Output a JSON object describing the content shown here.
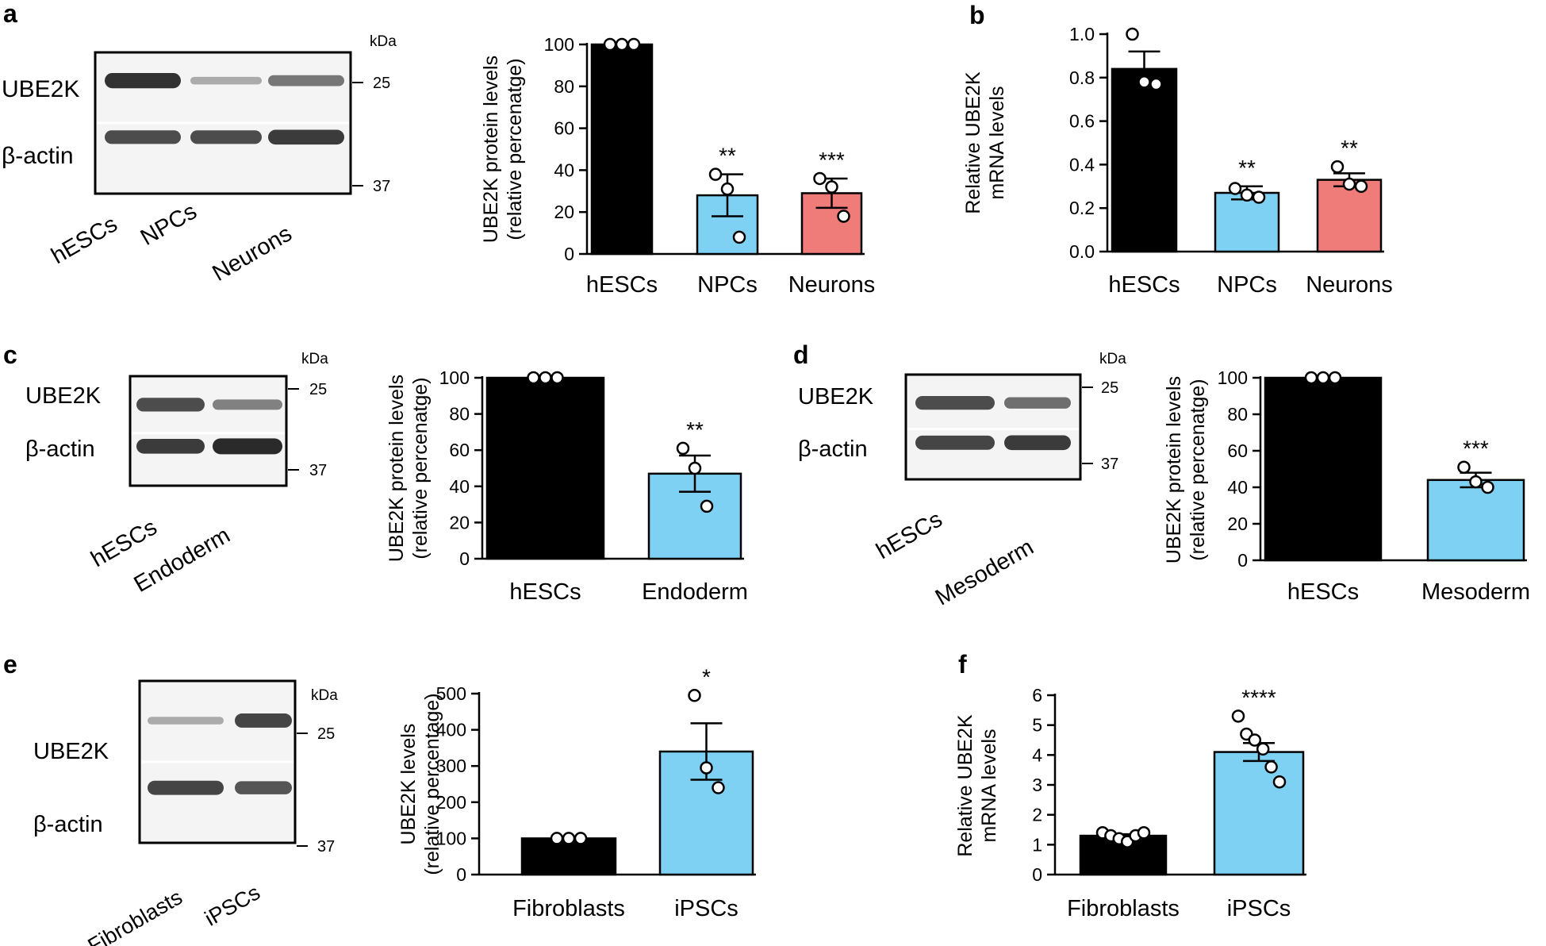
{
  "colors": {
    "black": "#000000",
    "blue": "#7fd1f4",
    "red": "#f07c79",
    "white": "#ffffff",
    "band": "#2a2a2a"
  },
  "panels": {
    "a": {
      "letter": "a",
      "blot": {
        "kda": "kDa",
        "markers": [
          "25",
          "37"
        ],
        "rows": [
          "UBE2K",
          "β-actin"
        ],
        "lanes": [
          "hESCs",
          "NPCs",
          "Neurons"
        ],
        "band_intensity": [
          [
            0.95,
            0.25,
            0.55
          ],
          [
            0.8,
            0.8,
            0.9
          ]
        ]
      }
    },
    "b": {
      "letter": "b"
    },
    "c": {
      "letter": "c",
      "blot": {
        "kda": "kDa",
        "markers": [
          "25",
          "37"
        ],
        "rows": [
          "UBE2K",
          "β-actin"
        ],
        "lanes": [
          "hESCs",
          "Endoderm"
        ],
        "band_intensity": [
          [
            0.8,
            0.5
          ],
          [
            0.9,
            1.0
          ]
        ]
      }
    },
    "d": {
      "letter": "d",
      "blot": {
        "kda": "kDa",
        "markers": [
          "25",
          "37"
        ],
        "rows": [
          "UBE2K",
          "β-actin"
        ],
        "lanes": [
          "hESCs",
          "Mesoderm"
        ],
        "band_intensity": [
          [
            0.8,
            0.6
          ],
          [
            0.85,
            0.9
          ]
        ]
      }
    },
    "e": {
      "letter": "e",
      "blot": {
        "kda": "kDa",
        "markers": [
          "25",
          "37"
        ],
        "rows": [
          "UBE2K",
          "β-actin"
        ],
        "lanes": [
          "Fibroblasts",
          "iPSCs"
        ],
        "band_intensity": [
          [
            0.25,
            0.85
          ],
          [
            0.85,
            0.75
          ]
        ]
      }
    },
    "f": {
      "letter": "f"
    }
  },
  "chart_data": [
    {
      "id": "a",
      "type": "bar",
      "ylabel": [
        "UBE2K protein levels",
        "(relative percenatge)"
      ],
      "ylim": [
        0,
        100
      ],
      "yticks": [
        0,
        20,
        40,
        60,
        80,
        100
      ],
      "categories": [
        "hESCs",
        "NPCs",
        "Neurons"
      ],
      "values": [
        100,
        28,
        29
      ],
      "sem": [
        0,
        10,
        7
      ],
      "points": [
        [
          100,
          100,
          100
        ],
        [
          38,
          31,
          8
        ],
        [
          36,
          32,
          18
        ]
      ],
      "colors": [
        "black",
        "blue",
        "red"
      ],
      "significance": [
        "",
        "**",
        "***"
      ]
    },
    {
      "id": "b",
      "type": "bar",
      "ylabel": [
        "Relative UBE2K",
        "mRNA levels"
      ],
      "ylim": [
        0,
        1.0
      ],
      "yticks": [
        "0.0",
        "0.2",
        "0.4",
        "0.6",
        "0.8",
        "1.0"
      ],
      "categories": [
        "hESCs",
        "NPCs",
        "Neurons"
      ],
      "values": [
        0.84,
        0.27,
        0.33
      ],
      "sem": [
        0.08,
        0.03,
        0.03
      ],
      "points": [
        [
          1.0,
          0.78,
          0.77
        ],
        [
          0.29,
          0.26,
          0.25
        ],
        [
          0.39,
          0.31,
          0.3
        ]
      ],
      "colors": [
        "black",
        "blue",
        "red"
      ],
      "significance": [
        "",
        "**",
        "**"
      ]
    },
    {
      "id": "c",
      "type": "bar",
      "ylabel": [
        "UBE2K protein levels",
        "(relative percenatge)"
      ],
      "ylim": [
        0,
        100
      ],
      "yticks": [
        0,
        20,
        40,
        60,
        80,
        100
      ],
      "categories": [
        "hESCs",
        "Endoderm"
      ],
      "values": [
        100,
        47
      ],
      "sem": [
        0,
        10
      ],
      "points": [
        [
          100,
          100,
          100
        ],
        [
          61,
          50,
          29
        ]
      ],
      "colors": [
        "black",
        "blue"
      ],
      "significance": [
        "",
        "**"
      ]
    },
    {
      "id": "d",
      "type": "bar",
      "ylabel": [
        "UBE2K protein levels",
        "(relative percenatge)"
      ],
      "ylim": [
        0,
        100
      ],
      "yticks": [
        0,
        20,
        40,
        60,
        80,
        100
      ],
      "categories": [
        "hESCs",
        "Mesoderm"
      ],
      "values": [
        100,
        44
      ],
      "sem": [
        0,
        4
      ],
      "points": [
        [
          100,
          100,
          100
        ],
        [
          51,
          43,
          40
        ]
      ],
      "colors": [
        "black",
        "blue"
      ],
      "significance": [
        "",
        "***"
      ]
    },
    {
      "id": "e",
      "type": "bar",
      "ylabel": [
        "UBE2K levels",
        "(relative percentage)"
      ],
      "ylim": [
        0,
        500
      ],
      "yticks": [
        0,
        100,
        200,
        300,
        400,
        500
      ],
      "categories": [
        "Fibroblasts",
        "iPSCs"
      ],
      "values": [
        100,
        340
      ],
      "sem": [
        0,
        78
      ],
      "points": [
        [
          100,
          100,
          100
        ],
        [
          495,
          295,
          240
        ]
      ],
      "colors": [
        "black",
        "blue"
      ],
      "significance": [
        "",
        "*"
      ]
    },
    {
      "id": "f",
      "type": "bar",
      "ylabel": [
        "Relative UBE2K",
        "mRNA levels"
      ],
      "ylim": [
        0,
        6
      ],
      "yticks": [
        0,
        1,
        2,
        3,
        4,
        5,
        6
      ],
      "categories": [
        "Fibroblasts",
        "iPSCs"
      ],
      "values": [
        1.3,
        4.1
      ],
      "sem": [
        0.05,
        0.3
      ],
      "points": [
        [
          1.4,
          1.3,
          1.2,
          1.1,
          1.3,
          1.4
        ],
        [
          5.3,
          4.7,
          4.5,
          4.2,
          3.6,
          3.1
        ]
      ],
      "colors": [
        "black",
        "blue"
      ],
      "significance": [
        "",
        "****"
      ]
    }
  ]
}
